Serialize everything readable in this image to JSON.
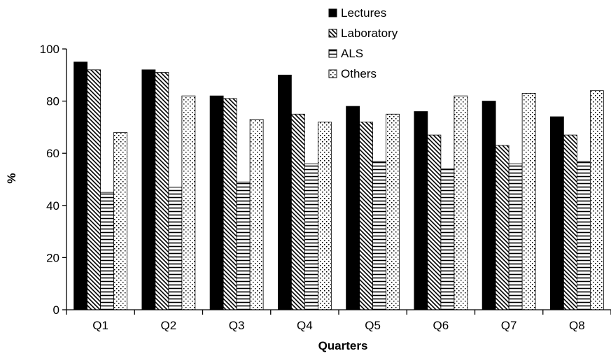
{
  "chart_data": {
    "type": "bar",
    "title": "",
    "xlabel": "Quarters",
    "ylabel": "%",
    "ylim": [
      0,
      100
    ],
    "yticks": [
      0,
      20,
      40,
      60,
      80,
      100
    ],
    "grid": false,
    "legend_position": "top-right",
    "categories": [
      "Q1",
      "Q2",
      "Q3",
      "Q4",
      "Q5",
      "Q6",
      "Q7",
      "Q8"
    ],
    "series": [
      {
        "name": "Lectures",
        "pattern": "solid",
        "values": [
          95,
          92,
          82,
          90,
          78,
          76,
          80,
          74
        ]
      },
      {
        "name": "Laboratory",
        "pattern": "diagonal-hatch",
        "values": [
          92,
          91,
          81,
          75,
          72,
          67,
          63,
          67
        ]
      },
      {
        "name": "ALS",
        "pattern": "horizontal-lines",
        "values": [
          45,
          47,
          49,
          56,
          57,
          54,
          56,
          57
        ]
      },
      {
        "name": "Others",
        "pattern": "dots",
        "values": [
          68,
          82,
          73,
          72,
          75,
          82,
          83,
          84
        ]
      }
    ],
    "colors": {
      "ink": "#000000",
      "background": "#ffffff"
    }
  }
}
